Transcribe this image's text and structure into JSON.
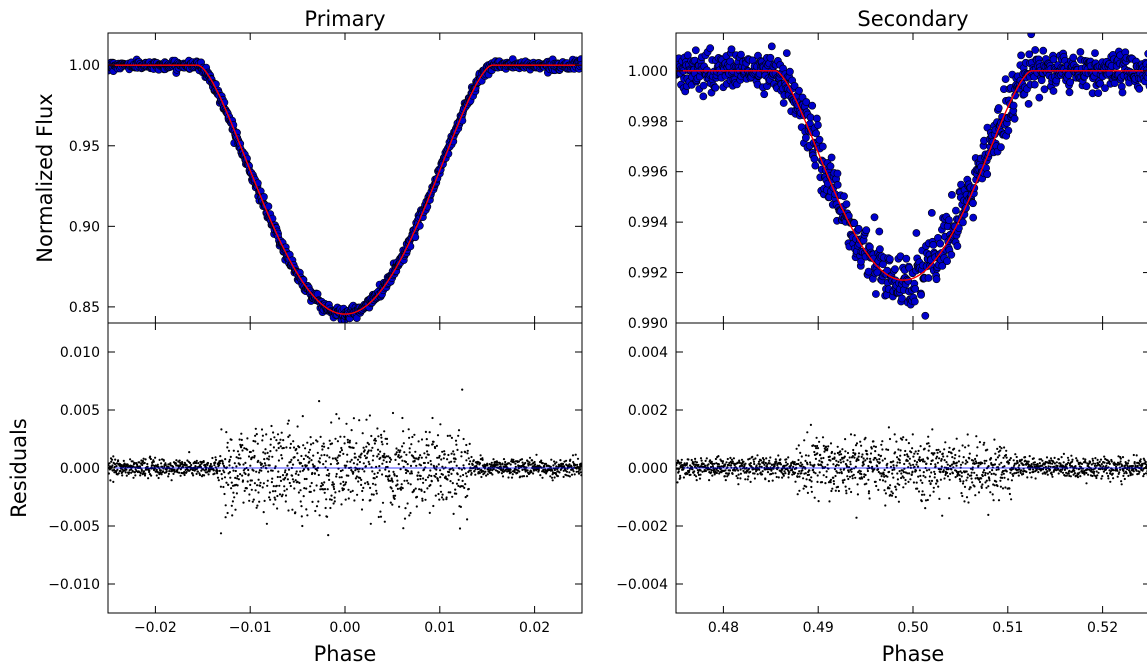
{
  "chart_data": [
    {
      "type": "scatter",
      "panel": "primary-flux",
      "title": "Primary",
      "xlabel": "",
      "ylabel": "Normalized Flux",
      "xlim": [
        -0.025,
        0.025
      ],
      "ylim": [
        0.84,
        1.02
      ],
      "yticks": [
        0.85,
        0.9,
        0.95,
        1.0
      ],
      "ytick_labels": [
        "0.85",
        "0.90",
        "0.95",
        "1.00"
      ],
      "grid": false,
      "series": [
        {
          "kind": "points",
          "color": "#0000cc",
          "edge": "#000000",
          "x_range": [
            -0.025,
            0.025
          ],
          "noise": 0.0012
        },
        {
          "kind": "model",
          "color": "#ff0000",
          "depth": 0.1545,
          "half_width": 0.0155
        }
      ]
    },
    {
      "type": "scatter",
      "panel": "primary-residuals",
      "xlabel": "Phase",
      "ylabel": "Residuals",
      "xlim": [
        -0.025,
        0.025
      ],
      "ylim": [
        -0.0125,
        0.0125
      ],
      "xticks": [
        -0.02,
        -0.01,
        0.0,
        0.01,
        0.02
      ],
      "xtick_labels": [
        "−0.02",
        "−0.01",
        "0.00",
        "0.01",
        "0.02"
      ],
      "yticks": [
        -0.01,
        -0.005,
        0.0,
        0.005,
        0.01
      ],
      "ytick_labels": [
        "−0.010",
        "−0.005",
        "0.000",
        "0.005",
        "0.010"
      ],
      "grid": false,
      "series": [
        {
          "kind": "points",
          "color": "#000000",
          "noise_out": 0.0004,
          "noise_in": 0.0018
        },
        {
          "kind": "zero-line",
          "color": "#0000ff"
        }
      ]
    },
    {
      "type": "scatter",
      "panel": "secondary-flux",
      "title": "Secondary",
      "xlabel": "",
      "ylabel": "",
      "xlim": [
        0.475,
        0.525
      ],
      "ylim": [
        0.99,
        1.0015
      ],
      "yticks": [
        0.99,
        0.992,
        0.994,
        0.996,
        0.998,
        1.0
      ],
      "ytick_labels": [
        "0.990",
        "0.992",
        "0.994",
        "0.996",
        "0.998",
        "1.000"
      ],
      "grid": false,
      "series": [
        {
          "kind": "points",
          "color": "#0000cc",
          "edge": "#000000",
          "noise": 0.00035
        },
        {
          "kind": "model",
          "color": "#ff0000",
          "center": 0.499,
          "depth": 0.0083,
          "half_width": 0.0135
        }
      ]
    },
    {
      "type": "scatter",
      "panel": "secondary-residuals",
      "xlabel": "Phase",
      "ylabel": "",
      "xlim": [
        0.475,
        0.525
      ],
      "ylim": [
        -0.005,
        0.005
      ],
      "xticks": [
        0.48,
        0.49,
        0.5,
        0.51,
        0.52
      ],
      "xtick_labels": [
        "0.48",
        "0.49",
        "0.50",
        "0.51",
        "0.52"
      ],
      "yticks": [
        -0.004,
        -0.002,
        0.0,
        0.002,
        0.004
      ],
      "ytick_labels": [
        "−0.004",
        "−0.002",
        "0.000",
        "0.002",
        "0.004"
      ],
      "grid": false,
      "series": [
        {
          "kind": "points",
          "color": "#000000",
          "noise_out": 0.00018,
          "noise_in": 0.0005
        },
        {
          "kind": "zero-line",
          "color": "#0000ff"
        }
      ]
    }
  ]
}
